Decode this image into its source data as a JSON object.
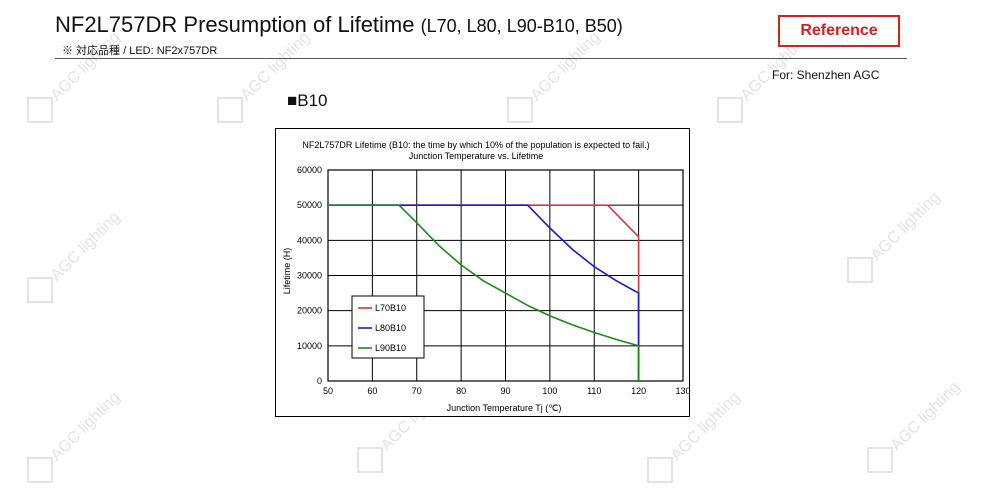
{
  "header": {
    "title_main": "NF2L757DR Presumption of Lifetime",
    "title_suffix": "(L70, L80, L90-B10, B50)",
    "subtitle": "※ 対応品種 / LED: NF2x757DR",
    "reference_label": "Reference",
    "for_note": "For: Shenzhen AGC",
    "section_label": "■B10"
  },
  "watermark": {
    "text": "AGC lighting",
    "color": "#e3e3e3"
  },
  "colors": {
    "reference": "#d42020",
    "L70B10": "#d23a3a",
    "L80B10": "#1a1ad0",
    "L90B10": "#1a8a1a"
  },
  "chart_data": {
    "type": "line",
    "title": "NF2L757DR Lifetime (B10: the time by which 10% of the population is expected to fail.)",
    "subtitle": "Junction Temperature vs. Lifetime",
    "xlabel": "Junction Temperature Tj (℃)",
    "ylabel": "Lifetime (H)",
    "xlim": [
      50,
      130
    ],
    "ylim": [
      0,
      60000
    ],
    "x_ticks": [
      "50",
      "60",
      "70",
      "80",
      "90",
      "100",
      "110",
      "120",
      "130"
    ],
    "y_ticks": [
      "0",
      "10000",
      "20000",
      "30000",
      "40000",
      "50000",
      "60000"
    ],
    "grid": true,
    "legend": "bottom-left",
    "series": [
      {
        "name": "L70B10",
        "color": "#d23a3a",
        "x": [
          50,
          113,
          120,
          120
        ],
        "y": [
          50000,
          50000,
          41000,
          0
        ]
      },
      {
        "name": "L80B10",
        "color": "#1a1ad0",
        "x": [
          50,
          95,
          100,
          105,
          110,
          115,
          120,
          120
        ],
        "y": [
          50000,
          50000,
          43500,
          37500,
          32500,
          28500,
          25000,
          0
        ]
      },
      {
        "name": "L90B10",
        "color": "#1a8a1a",
        "x": [
          50,
          66,
          70,
          75,
          80,
          85,
          90,
          95,
          100,
          105,
          110,
          115,
          120,
          120
        ],
        "y": [
          50000,
          50000,
          45000,
          38500,
          33000,
          28500,
          25000,
          21500,
          18500,
          16000,
          13800,
          11800,
          10000,
          0
        ]
      }
    ]
  }
}
